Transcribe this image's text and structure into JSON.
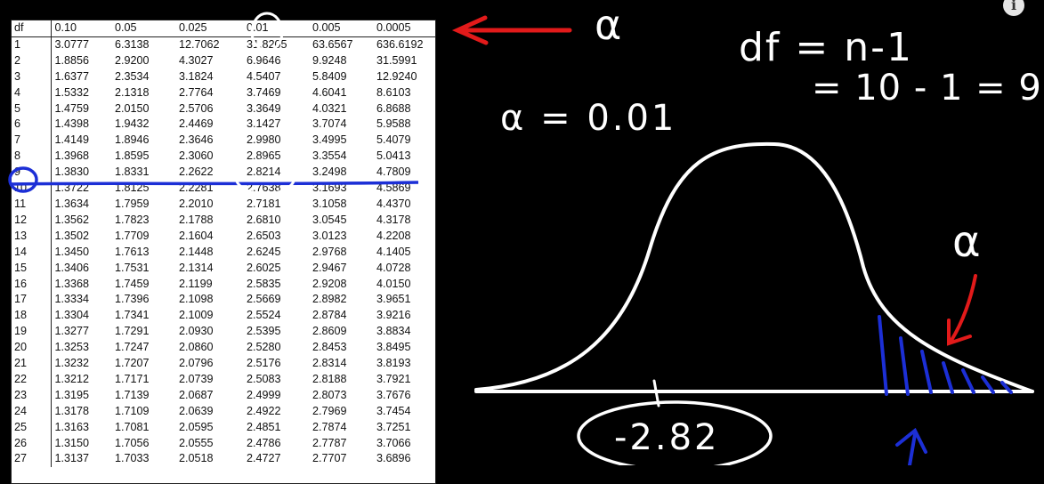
{
  "table": {
    "corner_label": "df",
    "columns": [
      "0.10",
      "0.05",
      "0.025",
      "0.01",
      "0.005",
      "0.0005"
    ],
    "rows": [
      [
        "1",
        "3.0777",
        "6.3138",
        "12.7062",
        "31.8205",
        "63.6567",
        "636.6192"
      ],
      [
        "2",
        "1.8856",
        "2.9200",
        "4.3027",
        "6.9646",
        "9.9248",
        "31.5991"
      ],
      [
        "3",
        "1.6377",
        "2.3534",
        "3.1824",
        "4.5407",
        "5.8409",
        "12.9240"
      ],
      [
        "4",
        "1.5332",
        "2.1318",
        "2.7764",
        "3.7469",
        "4.6041",
        "8.6103"
      ],
      [
        "5",
        "1.4759",
        "2.0150",
        "2.5706",
        "3.3649",
        "4.0321",
        "6.8688"
      ],
      [
        "6",
        "1.4398",
        "1.9432",
        "2.4469",
        "3.1427",
        "3.7074",
        "5.9588"
      ],
      [
        "7",
        "1.4149",
        "1.8946",
        "2.3646",
        "2.9980",
        "3.4995",
        "5.4079"
      ],
      [
        "8",
        "1.3968",
        "1.8595",
        "2.3060",
        "2.8965",
        "3.3554",
        "5.0413"
      ],
      [
        "9",
        "1.3830",
        "1.8331",
        "2.2622",
        "2.8214",
        "3.2498",
        "4.7809"
      ],
      [
        "10",
        "1.3722",
        "1.8125",
        "2.2281",
        "2.7638",
        "3.1693",
        "4.5869"
      ],
      [
        "11",
        "1.3634",
        "1.7959",
        "2.2010",
        "2.7181",
        "3.1058",
        "4.4370"
      ],
      [
        "12",
        "1.3562",
        "1.7823",
        "2.1788",
        "2.6810",
        "3.0545",
        "4.3178"
      ],
      [
        "13",
        "1.3502",
        "1.7709",
        "2.1604",
        "2.6503",
        "3.0123",
        "4.2208"
      ],
      [
        "14",
        "1.3450",
        "1.7613",
        "2.1448",
        "2.6245",
        "2.9768",
        "4.1405"
      ],
      [
        "15",
        "1.3406",
        "1.7531",
        "2.1314",
        "2.6025",
        "2.9467",
        "4.0728"
      ],
      [
        "16",
        "1.3368",
        "1.7459",
        "2.1199",
        "2.5835",
        "2.9208",
        "4.0150"
      ],
      [
        "17",
        "1.3334",
        "1.7396",
        "2.1098",
        "2.5669",
        "2.8982",
        "3.9651"
      ],
      [
        "18",
        "1.3304",
        "1.7341",
        "2.1009",
        "2.5524",
        "2.8784",
        "3.9216"
      ],
      [
        "19",
        "1.3277",
        "1.7291",
        "2.0930",
        "2.5395",
        "2.8609",
        "3.8834"
      ],
      [
        "20",
        "1.3253",
        "1.7247",
        "2.0860",
        "2.5280",
        "2.8453",
        "3.8495"
      ],
      [
        "21",
        "1.3232",
        "1.7207",
        "2.0796",
        "2.5176",
        "2.8314",
        "3.8193"
      ],
      [
        "22",
        "1.3212",
        "1.7171",
        "2.0739",
        "2.5083",
        "2.8188",
        "3.7921"
      ],
      [
        "23",
        "1.3195",
        "1.7139",
        "2.0687",
        "2.4999",
        "2.8073",
        "3.7676"
      ],
      [
        "24",
        "1.3178",
        "1.7109",
        "2.0639",
        "2.4922",
        "2.7969",
        "3.7454"
      ],
      [
        "25",
        "1.3163",
        "1.7081",
        "2.0595",
        "2.4851",
        "2.7874",
        "3.7251"
      ],
      [
        "26",
        "1.3150",
        "1.7056",
        "2.0555",
        "2.4786",
        "2.7787",
        "3.7066"
      ],
      [
        "27",
        "1.3137",
        "1.7033",
        "2.0518",
        "2.4727",
        "2.7707",
        "3.6896"
      ]
    ]
  },
  "annotations": {
    "alpha_symbol": "α",
    "df_formula": "df = n-1",
    "df_calc": "= 10 - 1 = 9",
    "alpha_value": "α = 0.01",
    "tail_alpha": "α",
    "critical_value": "-2.82"
  },
  "info_icon": "i",
  "colors": {
    "background": "#000000",
    "chalk": "#ffffff",
    "arrow": "#e21a1a",
    "highlight": "#1c2fd6"
  }
}
